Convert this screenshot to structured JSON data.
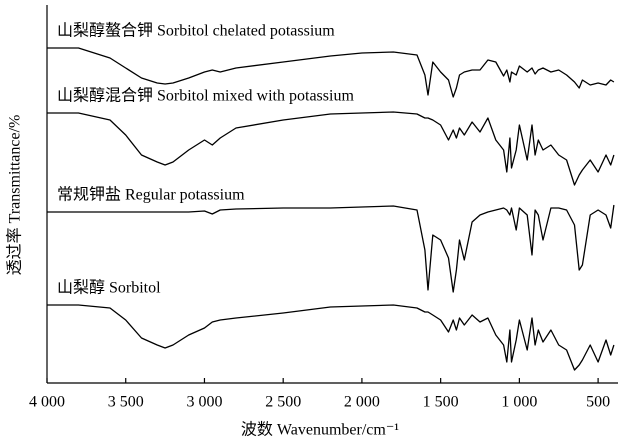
{
  "chart_data": {
    "type": "line",
    "x_label": "波数 Wavenumber/cm⁻¹",
    "y_label": "透过率 Transmittance/%",
    "xlim": [
      4000,
      380
    ],
    "ylim": [
      0,
      378
    ],
    "xticks": [
      {
        "value": 4000,
        "label": "4 000"
      },
      {
        "value": 3500,
        "label": "3 500"
      },
      {
        "value": 3000,
        "label": "3 000"
      },
      {
        "value": 2500,
        "label": "2 500"
      },
      {
        "value": 2000,
        "label": "2 000"
      },
      {
        "value": 1500,
        "label": "1 500"
      },
      {
        "value": 1000,
        "label": "1 000"
      },
      500
    ],
    "x": [
      4000,
      3800,
      3600,
      3500,
      3400,
      3300,
      3250,
      3200,
      3100,
      3000,
      2950,
      2900,
      2800,
      2500,
      2200,
      2000,
      1800,
      1650,
      1600,
      1580,
      1550,
      1500,
      1450,
      1420,
      1400,
      1380,
      1350,
      1300,
      1250,
      1200,
      1150,
      1100,
      1080,
      1060,
      1050,
      1020,
      1000,
      950,
      920,
      900,
      880,
      850,
      800,
      750,
      700,
      650,
      620,
      600,
      550,
      500,
      450,
      420,
      400
    ],
    "series": [
      {
        "name": "山梨醇螯合钾 Sorbitol chelated potassium",
        "color": "#000000",
        "values": [
          335,
          335,
          325,
          315,
          305,
          300,
          299,
          300,
          305,
          311,
          313,
          311,
          315,
          321,
          327,
          330,
          331,
          328,
          308,
          288,
          321,
          311,
          303,
          286,
          295,
          308,
          311,
          313,
          313,
          323,
          321,
          307,
          313,
          301,
          311,
          308,
          317,
          311,
          315,
          309,
          313,
          315,
          311,
          313,
          308,
          301,
          295,
          303,
          298,
          300,
          298,
          303,
          301
        ]
      },
      {
        "name": "山梨醇混合钾 Sorbitol mixed with potassium",
        "color": "#000000",
        "values": [
          270,
          270,
          263,
          248,
          228,
          221,
          218,
          221,
          233,
          243,
          238,
          245,
          255,
          263,
          269,
          270,
          271,
          269,
          265,
          265,
          263,
          258,
          243,
          253,
          245,
          255,
          248,
          261,
          251,
          265,
          243,
          233,
          211,
          245,
          215,
          233,
          258,
          223,
          258,
          228,
          243,
          233,
          238,
          228,
          223,
          198,
          208,
          213,
          223,
          211,
          228,
          218,
          228
        ]
      },
      {
        "name": "常规钾盐 Regular potassium",
        "color": "#000000",
        "values": [
          171,
          171,
          171,
          171,
          171,
          171,
          171,
          171,
          171,
          172,
          169,
          173,
          174,
          175,
          175,
          176,
          177,
          173,
          133,
          93,
          148,
          143,
          125,
          91,
          113,
          143,
          123,
          161,
          168,
          171,
          173,
          175,
          173,
          168,
          175,
          153,
          175,
          168,
          128,
          173,
          168,
          143,
          175,
          175,
          173,
          158,
          113,
          118,
          168,
          173,
          168,
          155,
          178
        ]
      },
      {
        "name": "山梨醇 Sorbitol",
        "color": "#000000",
        "values": [
          78,
          78,
          75,
          63,
          45,
          38,
          35,
          38,
          48,
          55,
          61,
          63,
          65,
          70,
          76,
          77,
          78,
          75,
          71,
          71,
          68,
          63,
          51,
          63,
          53,
          65,
          58,
          68,
          61,
          65,
          48,
          38,
          21,
          53,
          21,
          43,
          63,
          33,
          65,
          38,
          53,
          41,
          53,
          38,
          33,
          13,
          18,
          23,
          38,
          21,
          43,
          28,
          38
        ]
      }
    ]
  }
}
